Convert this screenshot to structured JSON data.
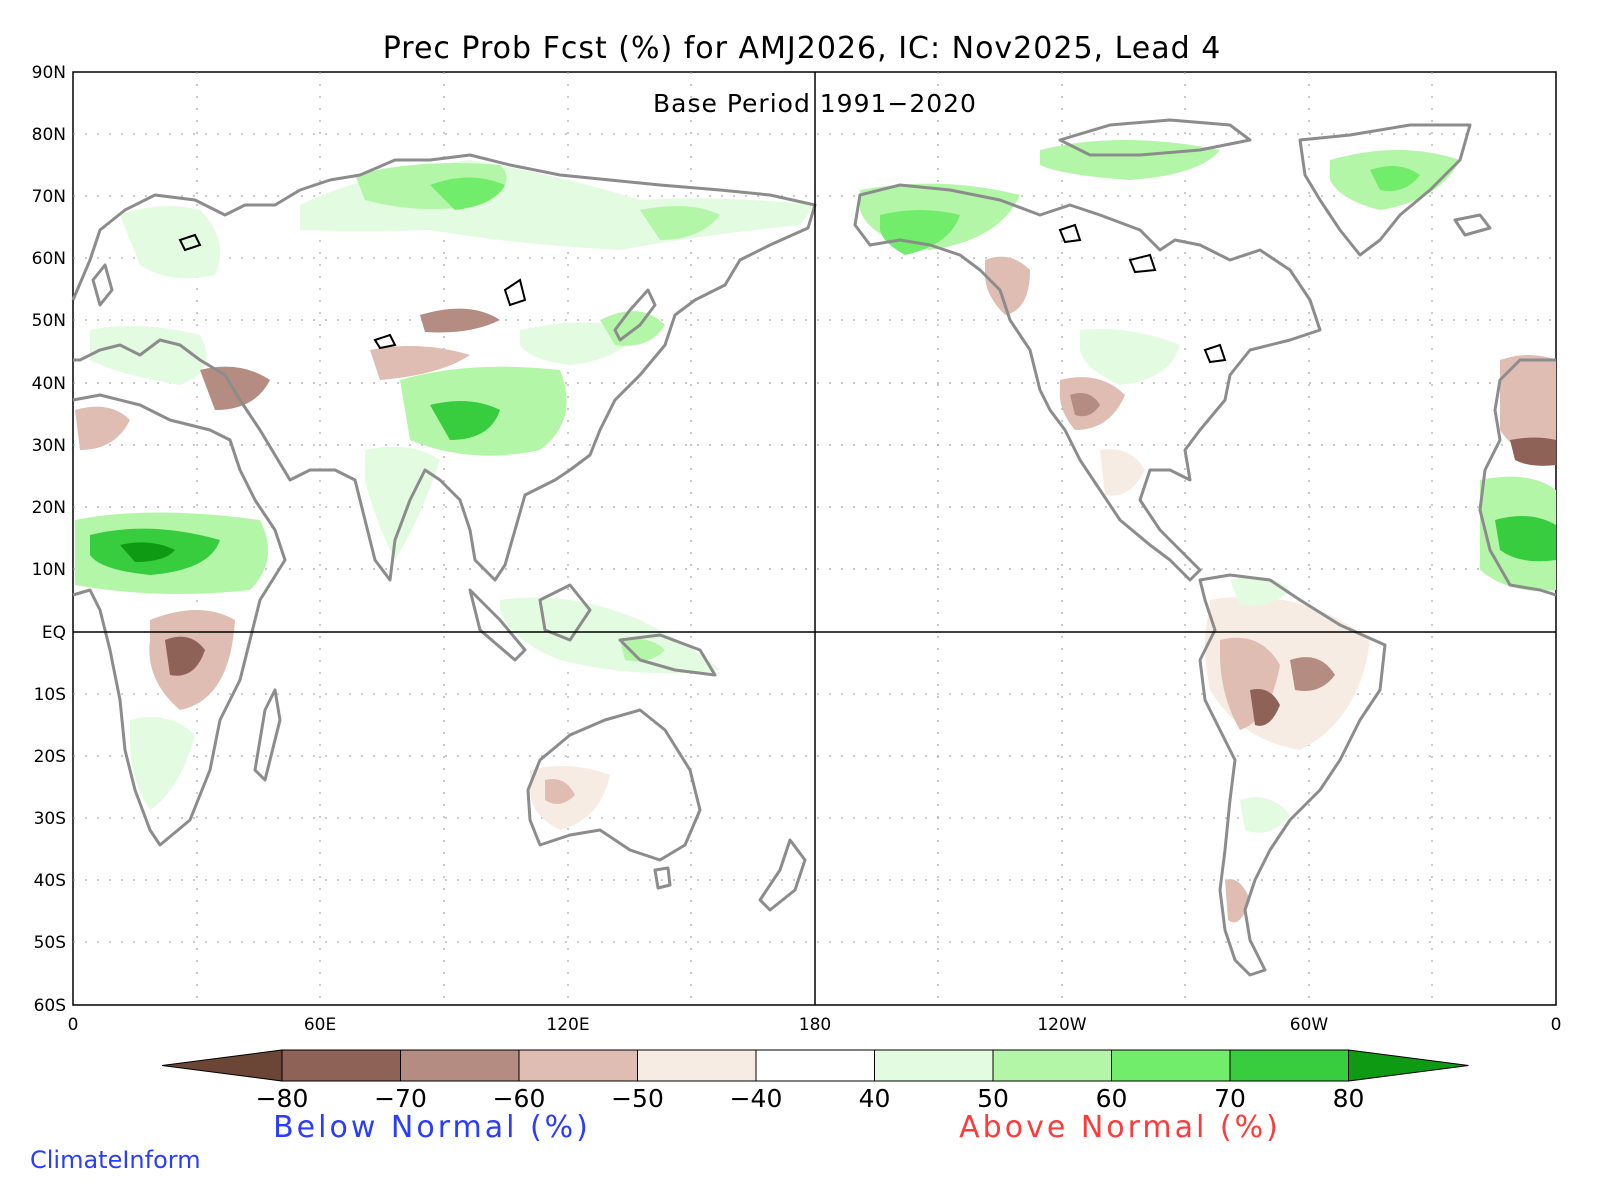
{
  "title": "Prec Prob Fcst (%) for AMJ2026, IC: Nov2025, Lead 4",
  "subtitle": "Base Period 1991−2020",
  "credit": "ClimateInform",
  "lat_labels": [
    "90N",
    "80N",
    "70N",
    "60N",
    "50N",
    "40N",
    "30N",
    "20N",
    "10N",
    "EQ",
    "10S",
    "20S",
    "30S",
    "40S",
    "50S",
    "60S"
  ],
  "lon_labels": [
    "0",
    "60E",
    "120E",
    "180",
    "120W",
    "60W",
    "0"
  ],
  "colorbar": {
    "labels": [
      "−80",
      "−70",
      "−60",
      "−50",
      "−40",
      "40",
      "50",
      "60",
      "70",
      "80"
    ],
    "colors": [
      "#6b4536",
      "#8f6258",
      "#b48c82",
      "#dfbdb2",
      "#f7ece4",
      "#ffffff",
      "#e3fbe0",
      "#b4f6a8",
      "#72ec6b",
      "#38cd3e",
      "#0f9a14"
    ],
    "below_label": "Below Normal (%)",
    "above_label": "Above Normal (%)"
  },
  "colors": {
    "land_outline": "#8c8c8c",
    "lakes": "#000000",
    "below_text": "#2a3cff",
    "above_text": "#ff3a3a"
  }
}
